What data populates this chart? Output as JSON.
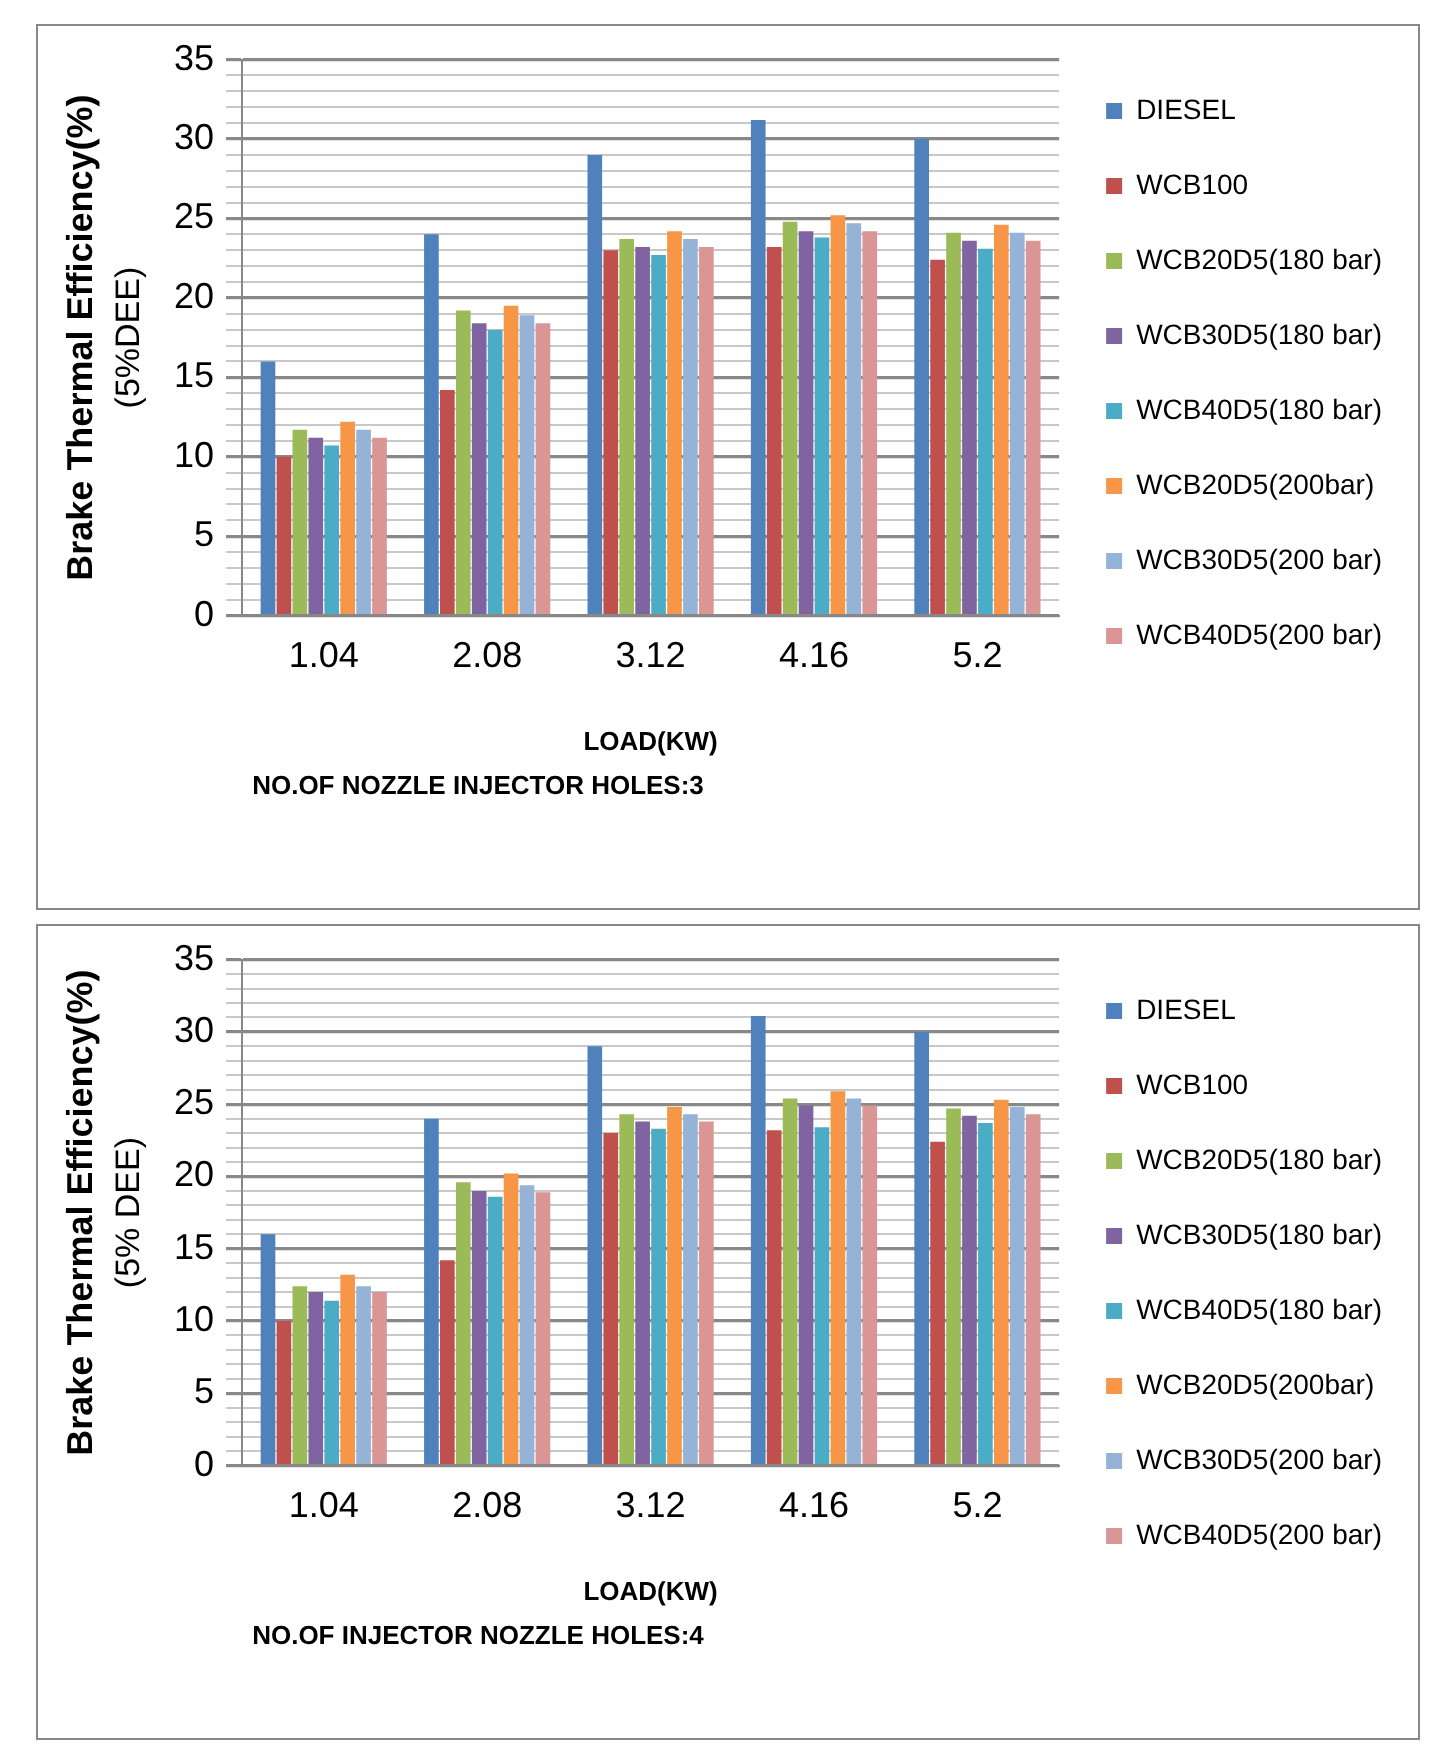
{
  "chart_data": [
    {
      "type": "bar",
      "ylabel": "Brake Thermal Efficiency(%)\n(5%DEE)",
      "xlabel": "LOAD(KW)",
      "annotations": [
        "NO.OF NOZZLE INJECTOR HOLES:3"
      ],
      "categories": [
        "1.04",
        "2.08",
        "3.12",
        "4.16",
        "5.2"
      ],
      "ylim": [
        0,
        35
      ],
      "yticks": [
        0,
        {
          "value": 1,
          "label": null
        },
        {
          "value": 2,
          "label": null
        },
        {
          "value": 3,
          "label": null
        },
        {
          "value": 4,
          "label": null
        },
        5,
        {
          "value": 6,
          "label": null
        },
        {
          "value": 7,
          "label": null
        },
        {
          "value": 8,
          "label": null
        },
        {
          "value": 9,
          "label": null
        },
        10,
        {
          "value": 11,
          "label": null
        },
        {
          "value": 12,
          "label": null
        },
        {
          "value": 13,
          "label": null
        },
        {
          "value": 14,
          "label": null
        },
        15,
        {
          "value": 16,
          "label": null
        },
        {
          "value": 17,
          "label": null
        },
        {
          "value": 18,
          "label": null
        },
        {
          "value": 19,
          "label": null
        },
        20,
        {
          "value": 21,
          "label": null
        },
        {
          "value": 22,
          "label": null
        },
        {
          "value": 23,
          "label": null
        },
        {
          "value": 24,
          "label": null
        },
        25,
        {
          "value": 26,
          "label": null
        },
        {
          "value": 27,
          "label": null
        },
        {
          "value": 28,
          "label": null
        },
        {
          "value": 29,
          "label": null
        },
        30,
        {
          "value": 31,
          "label": null
        },
        {
          "value": 32,
          "label": null
        },
        {
          "value": 33,
          "label": null
        },
        {
          "value": 34,
          "label": null
        },
        35
      ],
      "grid": "y",
      "legend": "right",
      "series": [
        {
          "name": "DIESEL",
          "color": "#4f81bd",
          "values": [
            16,
            24,
            29,
            31.2,
            30
          ]
        },
        {
          "name": "WCB100",
          "color": "#c0504d",
          "values": [
            10,
            14.2,
            23,
            23.2,
            22.4
          ]
        },
        {
          "name": "WCB20D5(180 bar)",
          "color": "#9bbb59",
          "values": [
            11.7,
            19.2,
            23.7,
            24.8,
            24.1
          ]
        },
        {
          "name": "WCB30D5(180 bar)",
          "color": "#8064a2",
          "values": [
            11.2,
            18.4,
            23.2,
            24.2,
            23.6
          ]
        },
        {
          "name": "WCB40D5(180 bar)",
          "color": "#4bacc6",
          "values": [
            10.7,
            18,
            22.7,
            23.8,
            23.1
          ]
        },
        {
          "name": "WCB20D5(200bar)",
          "color": "#f79646",
          "values": [
            12.2,
            19.5,
            24.2,
            25.2,
            24.6
          ]
        },
        {
          "name": "WCB30D5(200 bar)",
          "color": "#95b3d7",
          "values": [
            11.7,
            18.9,
            23.7,
            24.7,
            24.1
          ]
        },
        {
          "name": "WCB40D5(200 bar)",
          "color": "#d99694",
          "values": [
            11.2,
            18.4,
            23.2,
            24.2,
            23.6
          ]
        }
      ]
    },
    {
      "type": "bar",
      "ylabel": "Brake Thermal Efficiency(%)\n(5% DEE)",
      "xlabel": "LOAD(KW)",
      "annotations": [
        "NO.OF INJECTOR NOZZLE HOLES:4"
      ],
      "categories": [
        "1.04",
        "2.08",
        "3.12",
        "4.16",
        "5.2"
      ],
      "ylim": [
        0,
        35
      ],
      "yticks": [
        0,
        {
          "value": 1,
          "label": null
        },
        {
          "value": 2,
          "label": null
        },
        {
          "value": 3,
          "label": null
        },
        {
          "value": 4,
          "label": null
        },
        5,
        {
          "value": 6,
          "label": null
        },
        {
          "value": 7,
          "label": null
        },
        {
          "value": 8,
          "label": null
        },
        {
          "value": 9,
          "label": null
        },
        10,
        {
          "value": 11,
          "label": null
        },
        {
          "value": 12,
          "label": null
        },
        {
          "value": 13,
          "label": null
        },
        {
          "value": 14,
          "label": null
        },
        15,
        {
          "value": 16,
          "label": null
        },
        {
          "value": 17,
          "label": null
        },
        {
          "value": 18,
          "label": null
        },
        {
          "value": 19,
          "label": null
        },
        20,
        {
          "value": 21,
          "label": null
        },
        {
          "value": 22,
          "label": null
        },
        {
          "value": 23,
          "label": null
        },
        {
          "value": 24,
          "label": null
        },
        25,
        {
          "value": 26,
          "label": null
        },
        {
          "value": 27,
          "label": null
        },
        {
          "value": 28,
          "label": null
        },
        {
          "value": 29,
          "label": null
        },
        30,
        {
          "value": 31,
          "label": null
        },
        {
          "value": 32,
          "label": null
        },
        {
          "value": 33,
          "label": null
        },
        {
          "value": 34,
          "label": null
        },
        35
      ],
      "grid": "y",
      "legend": "right",
      "series": [
        {
          "name": "DIESEL",
          "color": "#4f81bd",
          "values": [
            16,
            24,
            29,
            31.1,
            30
          ]
        },
        {
          "name": "WCB100",
          "color": "#c0504d",
          "values": [
            10,
            14.2,
            23,
            23.2,
            22.4
          ]
        },
        {
          "name": "WCB20D5(180 bar)",
          "color": "#9bbb59",
          "values": [
            12.4,
            19.6,
            24.3,
            25.4,
            24.7
          ]
        },
        {
          "name": "WCB30D5(180 bar)",
          "color": "#8064a2",
          "values": [
            12,
            19,
            23.8,
            24.9,
            24.2
          ]
        },
        {
          "name": "WCB40D5(180 bar)",
          "color": "#4bacc6",
          "values": [
            11.4,
            18.6,
            23.3,
            23.4,
            23.7
          ]
        },
        {
          "name": "WCB20D5(200bar)",
          "color": "#f79646",
          "values": [
            13.2,
            20.2,
            24.8,
            25.9,
            25.3
          ]
        },
        {
          "name": "WCB30D5(200 bar)",
          "color": "#95b3d7",
          "values": [
            12.4,
            19.4,
            24.3,
            25.4,
            24.8
          ]
        },
        {
          "name": "WCB40D5(200 bar)",
          "color": "#d99694",
          "values": [
            12,
            18.9,
            23.8,
            24.9,
            24.3
          ]
        }
      ]
    }
  ]
}
